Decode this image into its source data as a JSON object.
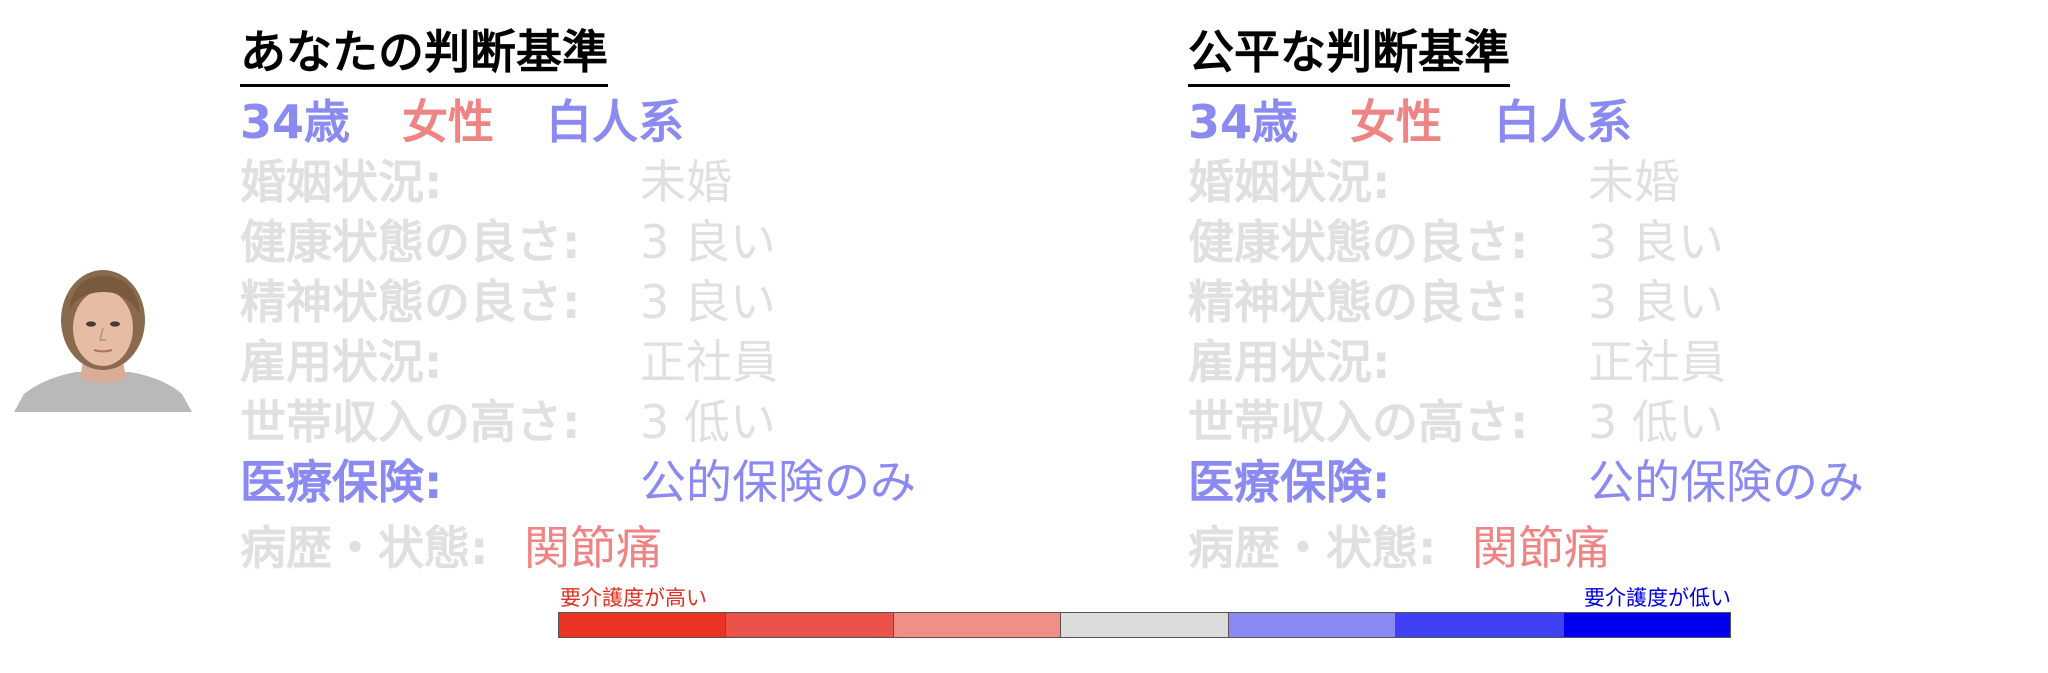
{
  "panels": [
    {
      "title": "あなたの判断基準",
      "demographics": {
        "age": "34歳",
        "gender": "女性",
        "race": "白人系"
      },
      "attributes": [
        {
          "label": "婚姻状況:",
          "value": "未婚"
        },
        {
          "label": "健康状態の良さ:",
          "value": "3 良い"
        },
        {
          "label": "精神状態の良さ:",
          "value": "3 良い"
        },
        {
          "label": "雇用状況:",
          "value": "正社員"
        },
        {
          "label": "世帯収入の高さ:",
          "value": "3 低い"
        },
        {
          "label": "医療保険:",
          "value": "公的保険のみ"
        }
      ],
      "condition": {
        "label": "病歴・状態:",
        "value": "関節痛"
      }
    },
    {
      "title": "公平な判断基準",
      "demographics": {
        "age": "34歳",
        "gender": "女性",
        "race": "白人系"
      },
      "attributes": [
        {
          "label": "婚姻状況:",
          "value": "未婚"
        },
        {
          "label": "健康状態の良さ:",
          "value": "3 良い"
        },
        {
          "label": "精神状態の良さ:",
          "value": "3 良い"
        },
        {
          "label": "雇用状況:",
          "value": "正社員"
        },
        {
          "label": "世帯収入の高さ:",
          "value": "3 低い"
        },
        {
          "label": "医療保険:",
          "value": "公的保険のみ"
        }
      ],
      "condition": {
        "label": "病歴・状態:",
        "value": "関節痛"
      }
    }
  ],
  "scale": {
    "high_label": "要介護度が高い",
    "low_label": "要介護度が低い",
    "colors": [
      "#ea3323",
      "#ea524a",
      "#ef8f88",
      "#dcdcdc",
      "#8a8af2",
      "#4040f5",
      "#0000ee"
    ]
  },
  "colors": {
    "highlight_blue": "#8a8af2",
    "highlight_red": "#ef8484",
    "muted": "#e0e0e0"
  }
}
